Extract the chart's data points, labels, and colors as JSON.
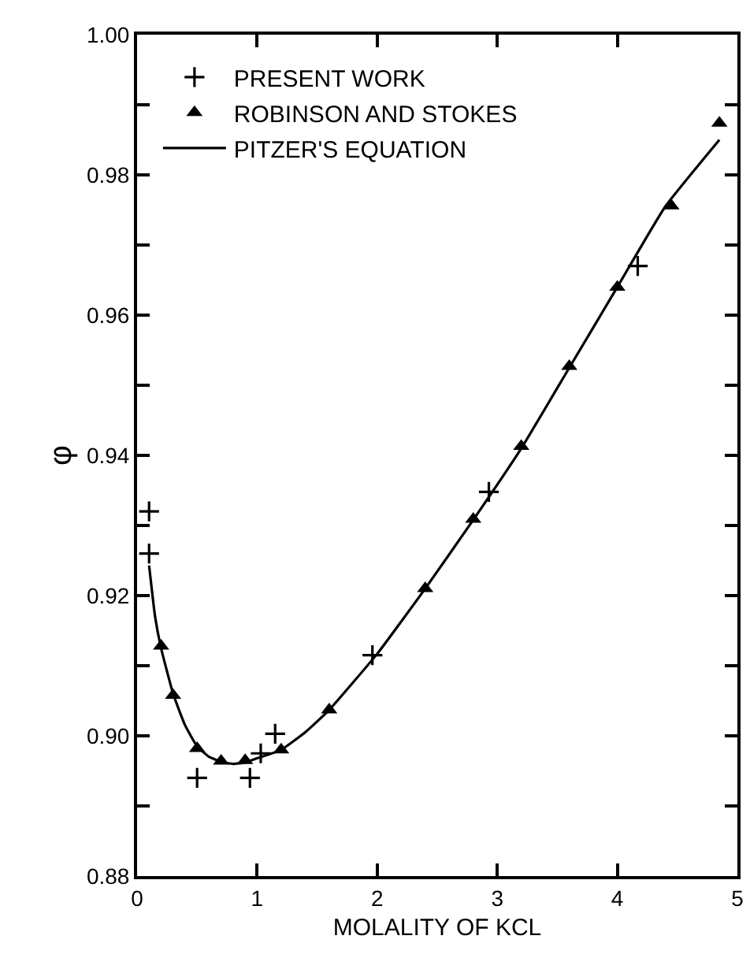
{
  "chart_data": {
    "type": "scatter",
    "xlabel": "MOLALITY OF KCL",
    "ylabel": "φ",
    "xlim": [
      0,
      5
    ],
    "xticks": [
      0,
      1,
      2,
      3,
      4,
      5
    ],
    "ylim": [
      0.88,
      1.0
    ],
    "yticks": [
      {
        "value": 0.88,
        "label": "0.88"
      },
      {
        "value": 0.89,
        "label": null
      },
      {
        "value": 0.9,
        "label": "0.90"
      },
      {
        "value": 0.91,
        "label": null
      },
      {
        "value": 0.92,
        "label": "0.92"
      },
      {
        "value": 0.93,
        "label": null
      },
      {
        "value": 0.94,
        "label": "0.94"
      },
      {
        "value": 0.95,
        "label": null
      },
      {
        "value": 0.96,
        "label": "0.96"
      },
      {
        "value": 0.97,
        "label": null
      },
      {
        "value": 0.98,
        "label": "0.98"
      },
      {
        "value": 0.99,
        "label": null
      },
      {
        "value": 1.0,
        "label": "1.00"
      }
    ],
    "grid": false,
    "legend": "top left",
    "series": [
      {
        "name": "PRESENT WORK",
        "marker": "cross",
        "color": "#000000",
        "x": [
          0.1,
          0.1,
          0.5,
          0.94,
          1.03,
          1.15,
          1.96,
          2.93,
          4.17
        ],
        "values": [
          0.932,
          0.926,
          0.894,
          0.894,
          0.8975,
          0.9003,
          0.9115,
          0.9348,
          0.967
        ]
      },
      {
        "name": "ROBINSON AND STOKES",
        "marker": "triangle",
        "color": "#000000",
        "x": [
          0.2,
          0.3,
          0.5,
          0.7,
          0.9,
          1.2,
          1.6,
          2.4,
          2.8,
          3.2,
          3.6,
          4.0,
          4.45,
          4.85
        ],
        "values": [
          0.9128,
          0.9058,
          0.8982,
          0.8964,
          0.8965,
          0.898,
          0.9037,
          0.921,
          0.9309,
          0.9413,
          0.9527,
          0.964,
          0.9756,
          0.9874
        ]
      },
      {
        "name": "PITZER'S EQUATION",
        "type": "line",
        "marker": "none",
        "line_style": "solid",
        "color": "#000000",
        "x": [
          0.1,
          0.15,
          0.2,
          0.3,
          0.4,
          0.5,
          0.6,
          0.7,
          0.8,
          0.9,
          1.0,
          1.2,
          1.4,
          1.6,
          2.0,
          2.4,
          2.8,
          3.2,
          3.6,
          4.0,
          4.4,
          4.85
        ],
        "values": [
          0.9243,
          0.917,
          0.9125,
          0.906,
          0.9015,
          0.8985,
          0.897,
          0.8963,
          0.896,
          0.8962,
          0.8968,
          0.898,
          0.9005,
          0.9037,
          0.9117,
          0.921,
          0.9308,
          0.941,
          0.9525,
          0.964,
          0.9755,
          0.985
        ]
      }
    ]
  }
}
